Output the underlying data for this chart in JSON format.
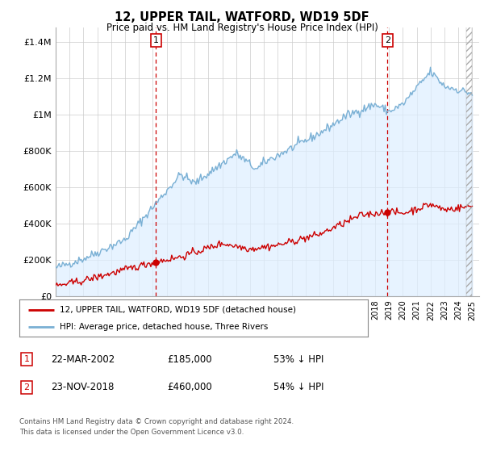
{
  "title": "12, UPPER TAIL, WATFORD, WD19 5DF",
  "subtitle": "Price paid vs. HM Land Registry's House Price Index (HPI)",
  "ylabel_ticks": [
    "£0",
    "£200K",
    "£400K",
    "£600K",
    "£800K",
    "£1M",
    "£1.2M",
    "£1.4M"
  ],
  "ytick_values": [
    0,
    200000,
    400000,
    600000,
    800000,
    1000000,
    1200000,
    1400000
  ],
  "ylim": [
    0,
    1480000
  ],
  "xlim_start": 1995.0,
  "xlim_end": 2025.5,
  "marker1_x": 2002.22,
  "marker1_y": 185000,
  "marker2_x": 2018.9,
  "marker2_y": 460000,
  "marker1_label": "1",
  "marker2_label": "2",
  "legend_line1": "12, UPPER TAIL, WATFORD, WD19 5DF (detached house)",
  "legend_line2": "HPI: Average price, detached house, Three Rivers",
  "annot1_num": "1",
  "annot1_date": "22-MAR-2002",
  "annot1_price": "£185,000",
  "annot1_hpi": "53% ↓ HPI",
  "annot2_num": "2",
  "annot2_date": "23-NOV-2018",
  "annot2_price": "£460,000",
  "annot2_hpi": "54% ↓ HPI",
  "footer": "Contains HM Land Registry data © Crown copyright and database right 2024.\nThis data is licensed under the Open Government Licence v3.0.",
  "line_red_color": "#cc0000",
  "line_blue_color": "#7ab0d4",
  "fill_blue_color": "#ddeeff",
  "background_color": "#ffffff",
  "grid_color": "#cccccc",
  "vline_color": "#cc0000"
}
